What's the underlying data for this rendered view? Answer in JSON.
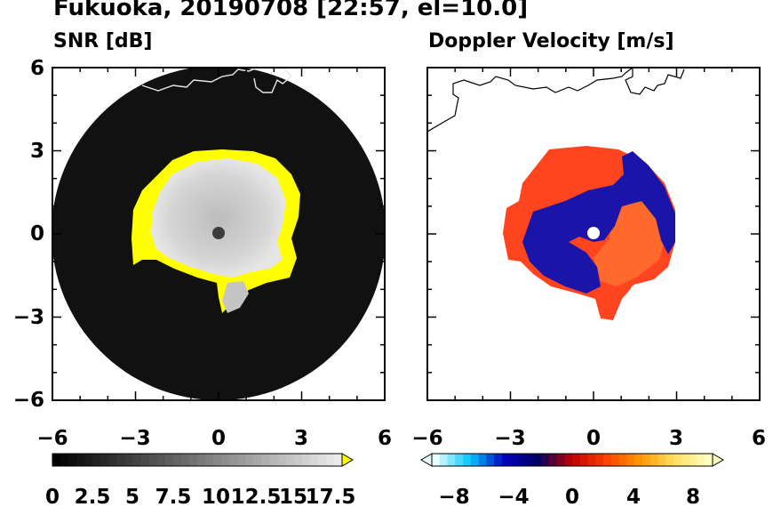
{
  "title": "Fukuoka, 20190708 [22:57, el=10.0]",
  "chart_data": [
    {
      "type": "heatmap",
      "title": "SNR [dB]",
      "xlim": [
        -6,
        6
      ],
      "ylim": [
        -6,
        6
      ],
      "x_ticks": [
        "−6",
        "−3",
        "0",
        "3",
        "6"
      ],
      "y_ticks": [
        "6",
        "3",
        "0",
        "−3",
        "−6"
      ],
      "colorbar": {
        "ticks": [
          "0",
          "2.5",
          "5",
          "7.5",
          "10",
          "12.5",
          "15",
          "17.5"
        ],
        "range": [
          0,
          18
        ],
        "extend": "max",
        "colors": [
          "#000000",
          "#ffffff"
        ],
        "over_color": "#ffff00"
      },
      "field": {
        "range_ring_km": 6.0,
        "strong_echo_radius_km": 2.5,
        "weak_echo_color": "#ffff00",
        "background_color": "#0d0d0d"
      }
    },
    {
      "type": "heatmap",
      "title": "Doppler Velocity [m/s]",
      "xlim": [
        -6,
        6
      ],
      "ylim": [
        -6,
        6
      ],
      "x_ticks": [
        "−6",
        "−3",
        "0",
        "3",
        "6"
      ],
      "y_ticks": [],
      "colorbar": {
        "ticks": [
          "−8",
          "−4",
          "0",
          "4",
          "8"
        ],
        "range": [
          -10,
          10
        ],
        "extend": "both",
        "colors": [
          "#e8ffff",
          "#00c8ff",
          "#0000c0",
          "#000060",
          "#c00000",
          "#ff4000",
          "#ff9900",
          "#ffe060",
          "#ffffc0"
        ]
      },
      "field": {
        "echo_radius_km": 3.0,
        "approaching_color": "#1010a0",
        "receding_color": "#ff4420"
      }
    }
  ]
}
